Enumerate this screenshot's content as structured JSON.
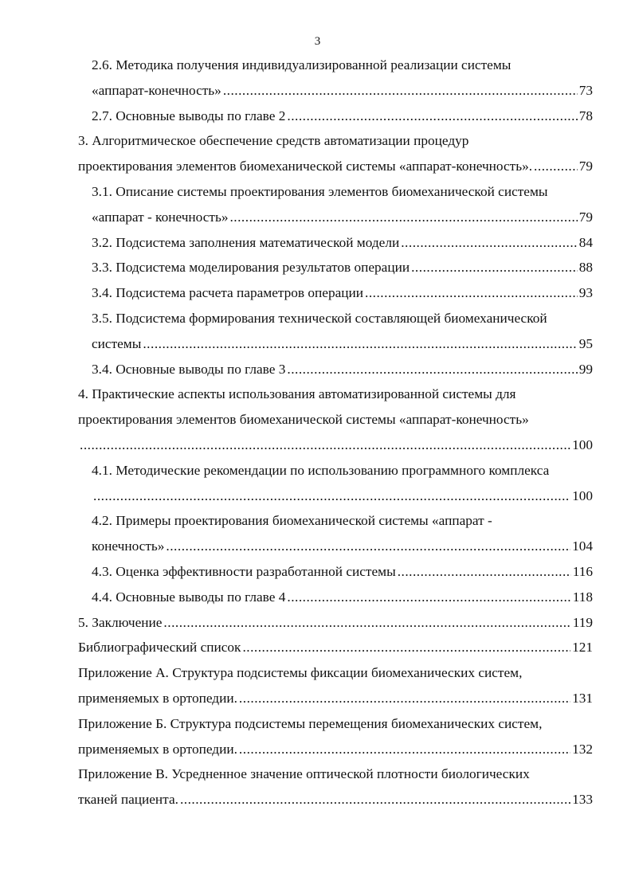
{
  "page_number": "3",
  "entries": [
    {
      "indent": true,
      "lines": [
        "2.6. Методика получения индивидуализированной реализации системы",
        "«аппарат-конечность»"
      ],
      "page": "73"
    },
    {
      "indent": true,
      "lines": [
        "2.7. Основные выводы по главе 2"
      ],
      "page": "78"
    },
    {
      "indent": false,
      "lines": [
        "3. Алгоритмическое обеспечение средств автоматизации процедур",
        "проектирования элементов биомеханической системы «аппарат-конечность»."
      ],
      "page": "79"
    },
    {
      "indent": true,
      "lines": [
        "3.1. Описание системы проектирования элементов биомеханической системы",
        "«аппарат - конечность»"
      ],
      "page": "79"
    },
    {
      "indent": true,
      "lines": [
        "3.2. Подсистема заполнения математической модели"
      ],
      "page": "84"
    },
    {
      "indent": true,
      "lines": [
        "3.3. Подсистема моделирования результатов операции"
      ],
      "page": "88"
    },
    {
      "indent": true,
      "lines": [
        "3.4. Подсистема расчета параметров операции"
      ],
      "page": "93"
    },
    {
      "indent": true,
      "lines": [
        "3.5. Подсистема формирования технической составляющей биомеханической",
        "системы"
      ],
      "page": "95"
    },
    {
      "indent": true,
      "lines": [
        "3.4. Основные выводы по главе 3"
      ],
      "page": "99"
    },
    {
      "indent": false,
      "lines": [
        "4. Практические аспекты использования автоматизированной системы для",
        "проектирования элементов биомеханической системы «аппарат-конечность»",
        ""
      ],
      "page": "100"
    },
    {
      "indent": true,
      "lines": [
        "4.1. Методические рекомендации по использованию программного комплекса",
        ""
      ],
      "page": "100"
    },
    {
      "indent": true,
      "lines": [
        "4.2. Примеры проектирования биомеханической системы «аппарат -",
        "конечность»"
      ],
      "page": "104"
    },
    {
      "indent": true,
      "lines": [
        "4.3. Оценка эффективности разработанной системы"
      ],
      "page": "116"
    },
    {
      "indent": true,
      "lines": [
        "4.4. Основные выводы по главе 4"
      ],
      "page": "118"
    },
    {
      "indent": false,
      "lines": [
        "5. Заключение"
      ],
      "page": "119"
    },
    {
      "indent": false,
      "lines": [
        "Библиографический список"
      ],
      "page": "121"
    },
    {
      "indent": false,
      "lines": [
        "Приложение А. Структура подсистемы фиксации биомеханических систем,",
        "применяемых в ортопедии."
      ],
      "page": "131"
    },
    {
      "indent": false,
      "lines": [
        "Приложение Б. Структура подсистемы перемещения биомеханических систем,",
        "применяемых в ортопедии."
      ],
      "page": "132"
    },
    {
      "indent": false,
      "lines": [
        "Приложение В. Усредненное значение оптической плотности биологических",
        "тканей пациента."
      ],
      "page": "133"
    }
  ]
}
